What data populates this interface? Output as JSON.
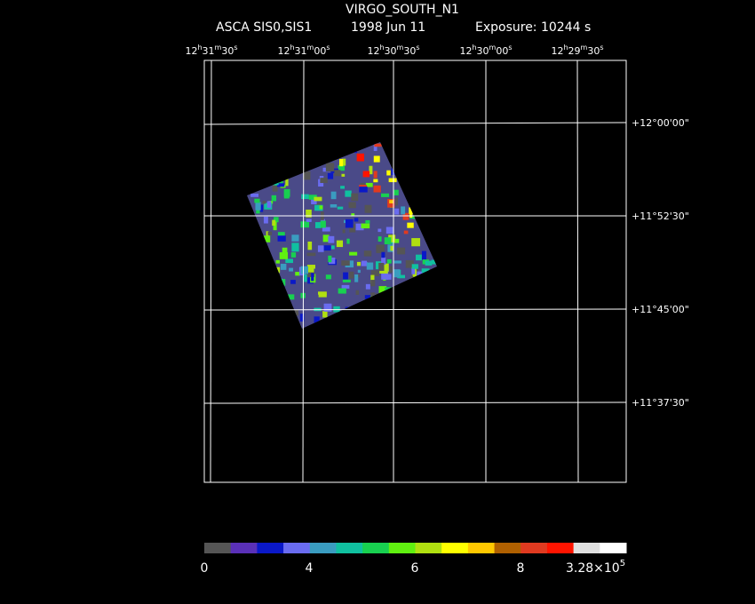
{
  "header": {
    "title": "VIRGO_SOUTH_N1",
    "instrument": "ASCA SIS0,SIS1",
    "date": "1998 Jun 11",
    "exposure": "Exposure: 10244 s"
  },
  "ra_labels": [
    [
      "12",
      "h",
      "31",
      "m",
      "30",
      "s"
    ],
    [
      "12",
      "h",
      "31",
      "m",
      "00",
      "s"
    ],
    [
      "12",
      "h",
      "30",
      "m",
      "30",
      "s"
    ],
    [
      "12",
      "h",
      "30",
      "m",
      "00",
      "s"
    ],
    [
      "12",
      "h",
      "29",
      "m",
      "30",
      "s"
    ]
  ],
  "dec_labels": [
    "+12°00'00\"",
    "+11°52'30\"",
    "+11°45'00\"",
    "+11°37'30\""
  ],
  "colorbar": {
    "colors": [
      "#555555",
      "#5a30b8",
      "#0a18c8",
      "#6a6cf0",
      "#3a9cc0",
      "#10c0a0",
      "#18d050",
      "#60f010",
      "#b0e010",
      "#ffff00",
      "#ffc800",
      "#b06000",
      "#e03a20",
      "#ff1400",
      "#e0e0e0",
      "#ffffff"
    ],
    "labels": [
      "0",
      "4",
      "6",
      "8"
    ],
    "max_mantissa": "3.28×10",
    "max_exponent": "5"
  }
}
